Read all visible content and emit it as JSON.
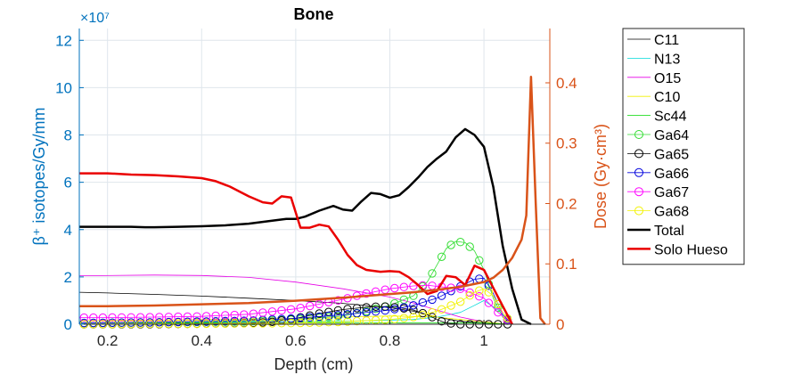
{
  "chart_data": {
    "type": "line",
    "title": "Bone",
    "xlabel": "Depth (cm)",
    "ylabel_left": "β⁺ isotopes/Gy/mm",
    "ylabel_right": "Dose (Gy·cm³)",
    "exponent_label": "×10⁷",
    "xlim": [
      0.14,
      1.14
    ],
    "ylim_left": [
      0,
      12.5
    ],
    "ylim_right": [
      0,
      0.49
    ],
    "xticks": [
      0.2,
      0.4,
      0.6,
      0.8,
      1
    ],
    "xtick_labels": [
      "0.2",
      "0.4",
      "0.6",
      "0.8",
      "1"
    ],
    "yticks_left": [
      0,
      2,
      4,
      6,
      8,
      10,
      12
    ],
    "ytick_labels_left": [
      "0",
      "2",
      "4",
      "6",
      "8",
      "10",
      "12"
    ],
    "yticks_right": [
      0,
      0.1,
      0.2,
      0.3,
      0.4
    ],
    "ytick_labels_right": [
      "0",
      "0.1",
      "0.2",
      "0.3",
      "0.4"
    ],
    "grid": true,
    "legend_position": "outside-right",
    "series": [
      {
        "name": "C11",
        "axis": "left",
        "color": "#000000",
        "width": 0.8,
        "marker": "none",
        "x": [
          0.14,
          0.2,
          0.3,
          0.4,
          0.5,
          0.6,
          0.7,
          0.8,
          0.85,
          0.9,
          0.95,
          1.0,
          1.05
        ],
        "y": [
          1.35,
          1.32,
          1.26,
          1.19,
          1.1,
          1.0,
          0.88,
          0.7,
          0.55,
          0.3,
          0.12,
          0.05,
          0.0
        ]
      },
      {
        "name": "N13",
        "axis": "left",
        "color": "#00d8d8",
        "width": 0.8,
        "marker": "none",
        "x": [
          0.14,
          0.4,
          0.7,
          0.85,
          0.9,
          0.95,
          0.98,
          1.0,
          1.03,
          1.06
        ],
        "y": [
          0.05,
          0.07,
          0.12,
          0.2,
          0.3,
          0.5,
          0.8,
          1.0,
          0.6,
          0.0
        ]
      },
      {
        "name": "O15",
        "axis": "left",
        "color": "#e600e6",
        "width": 0.8,
        "marker": "none",
        "x": [
          0.14,
          0.3,
          0.4,
          0.5,
          0.6,
          0.7,
          0.8,
          0.85,
          0.9,
          0.95,
          1.0,
          1.05
        ],
        "y": [
          2.05,
          2.08,
          2.06,
          1.98,
          1.78,
          1.5,
          1.15,
          0.9,
          0.6,
          0.3,
          0.1,
          0.0
        ]
      },
      {
        "name": "C10",
        "axis": "left",
        "color": "#f0f000",
        "width": 0.8,
        "marker": "none",
        "x": [
          0.14,
          0.4,
          0.6,
          0.7,
          0.8,
          0.9,
          0.95,
          1.0,
          1.05
        ],
        "y": [
          0.15,
          0.2,
          0.25,
          0.3,
          0.35,
          0.3,
          0.2,
          0.1,
          0.0
        ]
      },
      {
        "name": "Sc44",
        "axis": "left",
        "color": "#00d800",
        "width": 0.8,
        "marker": "none",
        "x": [
          0.14,
          0.5,
          0.8,
          1.0,
          1.06
        ],
        "y": [
          0.05,
          0.05,
          0.06,
          0.05,
          0.0
        ]
      },
      {
        "name": "Ga64",
        "axis": "left",
        "color": "#33dd33",
        "width": 0.8,
        "marker": "circle",
        "x": [
          0.14,
          0.3,
          0.5,
          0.6,
          0.7,
          0.75,
          0.8,
          0.85,
          0.88,
          0.9,
          0.92,
          0.94,
          0.96,
          0.98,
          1.0,
          1.02,
          1.04,
          1.06
        ],
        "y": [
          0.05,
          0.08,
          0.12,
          0.2,
          0.35,
          0.55,
          0.8,
          1.2,
          1.8,
          2.5,
          3.2,
          3.5,
          3.45,
          3.1,
          2.3,
          1.1,
          0.3,
          0.0
        ]
      },
      {
        "name": "Ga65",
        "axis": "left",
        "color": "#000000",
        "width": 0.8,
        "marker": "circle",
        "x": [
          0.14,
          0.3,
          0.5,
          0.55,
          0.6,
          0.65,
          0.7,
          0.75,
          0.78,
          0.8,
          0.82,
          0.85,
          0.88,
          0.9,
          0.92,
          0.95,
          0.98,
          1.0,
          1.02,
          1.04,
          1.06
        ],
        "y": [
          0.0,
          0.0,
          0.05,
          0.1,
          0.25,
          0.45,
          0.62,
          0.72,
          0.75,
          0.74,
          0.7,
          0.6,
          0.4,
          0.2,
          0.05,
          0.0,
          0.0,
          0.0,
          0.0,
          0.0,
          0.0
        ]
      },
      {
        "name": "Ga66",
        "axis": "left",
        "color": "#0000dd",
        "width": 0.8,
        "marker": "circle",
        "x": [
          0.14,
          0.3,
          0.5,
          0.6,
          0.7,
          0.8,
          0.85,
          0.9,
          0.95,
          0.98,
          1.0,
          1.02,
          1.04,
          1.06
        ],
        "y": [
          0.05,
          0.08,
          0.15,
          0.25,
          0.4,
          0.6,
          0.8,
          1.1,
          1.6,
          1.9,
          1.95,
          1.3,
          0.4,
          0.0
        ]
      },
      {
        "name": "Ga67",
        "axis": "left",
        "color": "#ff00ff",
        "width": 0.8,
        "marker": "circle",
        "x": [
          0.14,
          0.2,
          0.3,
          0.4,
          0.5,
          0.6,
          0.65,
          0.7,
          0.75,
          0.8,
          0.85,
          0.88,
          0.9,
          0.95,
          1.0,
          1.03,
          1.06
        ],
        "y": [
          0.28,
          0.28,
          0.3,
          0.33,
          0.42,
          0.65,
          0.85,
          1.05,
          1.3,
          1.5,
          1.62,
          1.65,
          1.6,
          1.5,
          1.1,
          0.5,
          0.0
        ]
      },
      {
        "name": "Ga68",
        "axis": "left",
        "color": "#f2f200",
        "width": 0.8,
        "marker": "circle",
        "x": [
          0.14,
          0.4,
          0.6,
          0.7,
          0.8,
          0.85,
          0.9,
          0.95,
          0.98,
          1.0,
          1.02,
          1.04,
          1.06
        ],
        "y": [
          0.0,
          0.02,
          0.05,
          0.1,
          0.2,
          0.3,
          0.55,
          0.95,
          1.35,
          1.5,
          1.2,
          0.5,
          0.0
        ]
      },
      {
        "name": "Total",
        "axis": "left",
        "color": "#000000",
        "width": 2.5,
        "marker": "none",
        "x": [
          0.14,
          0.2,
          0.25,
          0.28,
          0.3,
          0.35,
          0.4,
          0.45,
          0.5,
          0.55,
          0.58,
          0.6,
          0.62,
          0.65,
          0.68,
          0.7,
          0.72,
          0.74,
          0.76,
          0.78,
          0.8,
          0.82,
          0.84,
          0.86,
          0.88,
          0.9,
          0.92,
          0.94,
          0.96,
          0.98,
          1.0,
          1.02,
          1.04,
          1.06,
          1.08,
          1.1
        ],
        "y": [
          4.12,
          4.12,
          4.12,
          4.1,
          4.1,
          4.12,
          4.14,
          4.18,
          4.25,
          4.38,
          4.45,
          4.45,
          4.55,
          4.8,
          5.0,
          4.85,
          4.8,
          5.2,
          5.55,
          5.5,
          5.35,
          5.45,
          5.8,
          6.2,
          6.65,
          7.0,
          7.3,
          7.9,
          8.25,
          8.0,
          7.5,
          5.8,
          3.3,
          1.5,
          0.2,
          0.0
        ]
      },
      {
        "name": "Solo Hueso",
        "axis": "right",
        "color": "#ea0000",
        "width": 2.5,
        "marker": "none",
        "x": [
          0.14,
          0.2,
          0.25,
          0.3,
          0.35,
          0.4,
          0.43,
          0.46,
          0.5,
          0.53,
          0.55,
          0.57,
          0.59,
          0.61,
          0.63,
          0.65,
          0.67,
          0.69,
          0.71,
          0.73,
          0.75,
          0.78,
          0.8,
          0.82,
          0.84,
          0.86,
          0.88,
          0.9,
          0.92,
          0.94,
          0.96,
          0.98,
          1.0,
          1.02,
          1.04,
          1.06
        ],
        "y": [
          0.25,
          0.25,
          0.248,
          0.247,
          0.245,
          0.242,
          0.237,
          0.228,
          0.212,
          0.202,
          0.2,
          0.212,
          0.21,
          0.16,
          0.16,
          0.165,
          0.162,
          0.14,
          0.115,
          0.098,
          0.09,
          0.087,
          0.088,
          0.087,
          0.078,
          0.065,
          0.05,
          0.055,
          0.08,
          0.078,
          0.065,
          0.097,
          0.09,
          0.06,
          0.03,
          0.0
        ]
      },
      {
        "name": "",
        "axis": "right",
        "color": "#d95319",
        "width": 2.5,
        "marker": "none",
        "x": [
          0.14,
          0.2,
          0.3,
          0.4,
          0.5,
          0.6,
          0.7,
          0.8,
          0.85,
          0.9,
          0.95,
          1.0,
          1.02,
          1.04,
          1.06,
          1.08,
          1.09,
          1.1,
          1.11,
          1.12,
          1.13
        ],
        "y": [
          0.03,
          0.03,
          0.031,
          0.033,
          0.035,
          0.039,
          0.044,
          0.05,
          0.053,
          0.057,
          0.062,
          0.07,
          0.077,
          0.09,
          0.11,
          0.14,
          0.18,
          0.41,
          0.2,
          0.01,
          0.0
        ]
      }
    ]
  }
}
